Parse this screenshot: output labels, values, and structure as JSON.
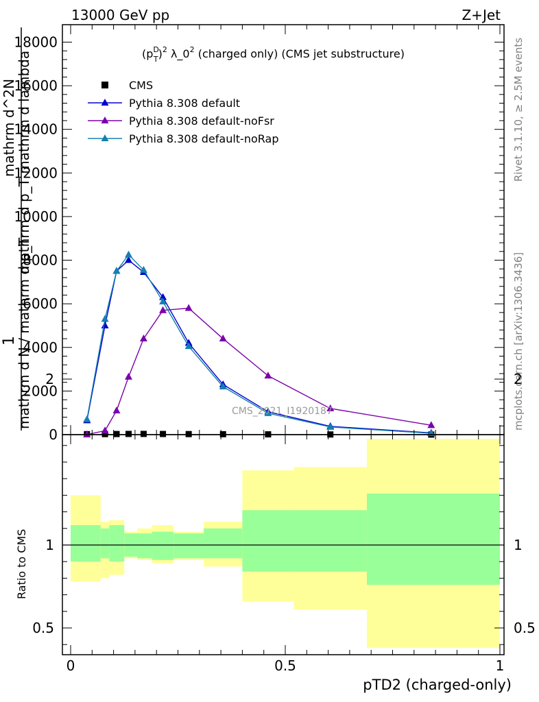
{
  "header": {
    "energy_label": "13000 GeV pp",
    "process_label": "Z+Jet",
    "side_rivet": "Rivet 3.1.10, ≥ 2.5M events",
    "side_mcplots": "mcplots.cern.ch [arXiv:1306.3436]"
  },
  "chart_data": [
    {
      "type": "line",
      "title": "(p_T^D)^2 λ_0^2 (charged only) (CMS jet substructure)",
      "title_parts": {
        "a": "(p",
        "sup_d": "D",
        "sub_t": "T",
        "b": ")",
        "sup_2a": "2",
        "c": " λ_0",
        "sup_2b": "2",
        "d": " (charged only) (CMS jet substructure)"
      },
      "ylabel_lines": [
        "1",
        "mathrm d N / mathrm d p_T",
        "mathrm d^2N",
        "mathrm d p_T mathrm d lambda"
      ],
      "ylim": [
        0,
        18800
      ],
      "xlim": [
        0,
        1
      ],
      "yticks": [
        0,
        2000,
        4000,
        6000,
        8000,
        10000,
        12000,
        14000,
        16000,
        18000
      ],
      "ytick_labels": [
        "0",
        "2000",
        "4000",
        "6000",
        "8000",
        "10000",
        "12000",
        "14000",
        "16000",
        "18000"
      ],
      "legend_position": "top-left",
      "watermark": "CMS_2021_I1920187",
      "x": [
        0.038,
        0.08,
        0.107,
        0.135,
        0.17,
        0.215,
        0.275,
        0.355,
        0.46,
        0.605,
        0.84
      ],
      "series": [
        {
          "name": "CMS",
          "color": "#000000",
          "marker": "square",
          "values": [
            22,
            25,
            28,
            32,
            33,
            30,
            25,
            20,
            14,
            8,
            3
          ]
        },
        {
          "name": "Pythia 8.308 default",
          "color": "#0000cc",
          "marker": "triangle",
          "values": [
            650,
            5000,
            7500,
            8000,
            7450,
            6300,
            4200,
            2300,
            1050,
            380,
            80
          ]
        },
        {
          "name": "Pythia 8.308 default-noFsr",
          "color": "#7b00aa",
          "marker": "triangle",
          "values": [
            5,
            180,
            1100,
            2650,
            4400,
            5700,
            5800,
            4400,
            2700,
            1200,
            430
          ]
        },
        {
          "name": "Pythia 8.308 default-noRap",
          "color": "#1580b0",
          "marker": "triangle",
          "values": [
            700,
            5300,
            7500,
            8250,
            7550,
            6100,
            4050,
            2200,
            980,
            350,
            60
          ]
        }
      ]
    },
    {
      "type": "area",
      "ylabel": "Ratio to CMS",
      "xlabel": "pTD2 (charged-only)",
      "ylim": [
        0.35,
        2.3
      ],
      "yticks": [
        0.5,
        1,
        2
      ],
      "ytick_labels": [
        "0.5",
        "1",
        "2"
      ],
      "xticks": [
        0,
        0.5,
        1
      ],
      "xtick_labels": [
        "0",
        "0.5",
        "1"
      ],
      "bin_edges": [
        0,
        0.07,
        0.09,
        0.125,
        0.155,
        0.19,
        0.24,
        0.31,
        0.4,
        0.52,
        0.69,
        1.0
      ],
      "band_inner": {
        "name": "stat",
        "color": "#99ff99",
        "low": [
          0.9,
          0.92,
          0.9,
          0.93,
          0.92,
          0.91,
          0.92,
          0.92,
          0.84,
          0.84,
          0.76
        ],
        "high": [
          1.12,
          1.1,
          1.12,
          1.07,
          1.07,
          1.08,
          1.07,
          1.1,
          1.21,
          1.21,
          1.31
        ]
      },
      "band_outer": {
        "name": "total",
        "color": "#ffff99",
        "low": [
          0.78,
          0.8,
          0.82,
          0.92,
          0.91,
          0.89,
          0.91,
          0.87,
          0.66,
          0.61,
          0.38
        ],
        "high": [
          1.3,
          1.14,
          1.15,
          1.08,
          1.1,
          1.12,
          1.08,
          1.14,
          1.45,
          1.47,
          1.64
        ]
      },
      "reference_line": 1
    }
  ]
}
